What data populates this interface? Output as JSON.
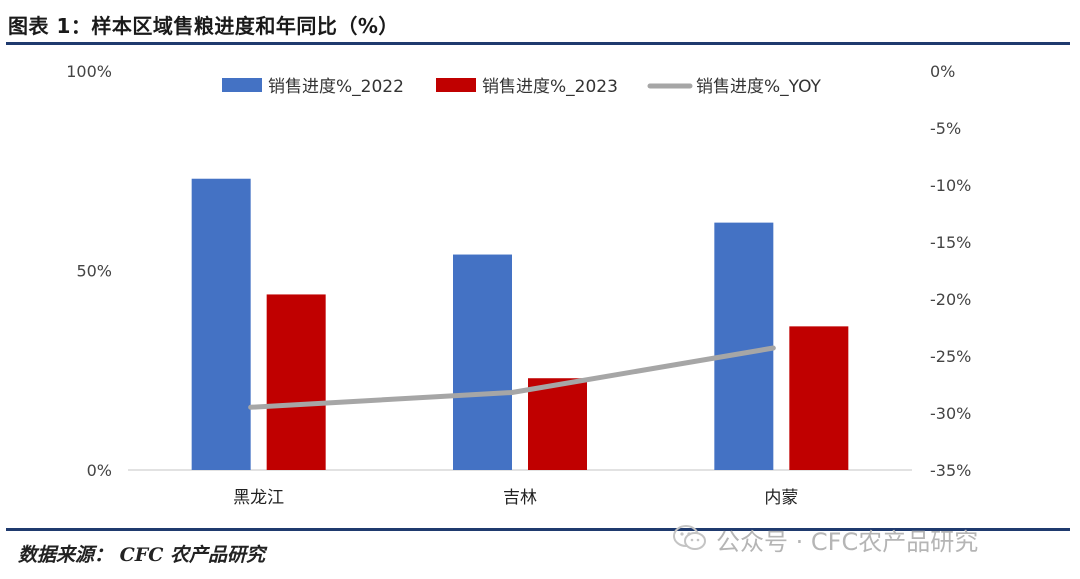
{
  "header": {
    "title": "图表 1：样本区域售粮进度和年同比（%）"
  },
  "footer": {
    "source": "数据来源：  CFC 农产品研究",
    "watermark": "公众号 · CFC农产品研究"
  },
  "colors": {
    "s2022": "#4472c4",
    "s2023": "#c00000",
    "yoy": "#a6a6a6",
    "rule": "#1f3a6e"
  },
  "chart_data": {
    "type": "bar",
    "categories": [
      "黑龙江",
      "吉林",
      "内蒙"
    ],
    "series": [
      {
        "name": "销售进度%_2022",
        "type": "bar",
        "axis": "left",
        "values": [
          73,
          54,
          62
        ]
      },
      {
        "name": "销售进度%_2023",
        "type": "bar",
        "axis": "left",
        "values": [
          44,
          23,
          36
        ]
      },
      {
        "name": "销售进度%_YOY",
        "type": "line",
        "axis": "right",
        "values": [
          -29.5,
          -28.2,
          -24.3
        ]
      }
    ],
    "left_axis": {
      "ylim": [
        0,
        100
      ],
      "ticks": [
        "0%",
        "50%",
        "100%"
      ]
    },
    "right_axis": {
      "ylim": [
        -35,
        0
      ],
      "ticks": [
        "0%",
        "-5%",
        "-10%",
        "-15%",
        "-20%",
        "-25%",
        "-30%",
        "-35%"
      ]
    },
    "legend_position": "top",
    "grid": false
  }
}
